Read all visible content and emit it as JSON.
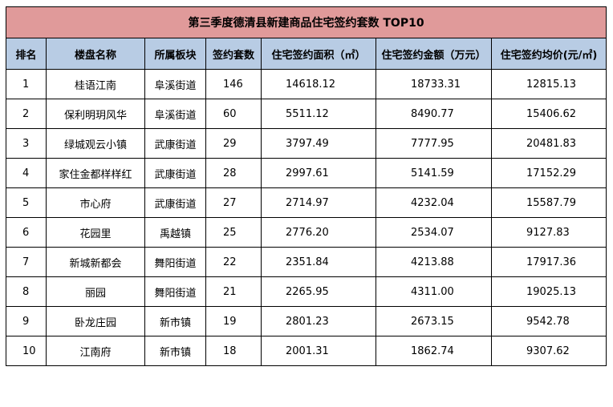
{
  "title": "第三季度德清县新建商品住宅签约套数 TOP10",
  "colors": {
    "title_bg": "#e09a9a",
    "header_bg": "#b8cce4",
    "border": "#000000"
  },
  "columns": [
    "排名",
    "楼盘名称",
    "所属板块",
    "签约套数",
    "住宅签约面积（㎡）",
    "住宅签约金额（万元）",
    "住宅签约均价(元/㎡)"
  ],
  "rows": [
    {
      "rank": "1",
      "name": "桂语江南",
      "area": "阜溪街道",
      "units": "146",
      "sqm": "14618.12",
      "amount": "18733.31",
      "price": "12815.13"
    },
    {
      "rank": "2",
      "name": "保利明玥风华",
      "area": "阜溪街道",
      "units": "60",
      "sqm": "5511.12",
      "amount": "8490.77",
      "price": "15406.62"
    },
    {
      "rank": "3",
      "name": "绿城观云小镇",
      "area": "武康街道",
      "units": "29",
      "sqm": "3797.49",
      "amount": "7777.95",
      "price": "20481.83"
    },
    {
      "rank": "4",
      "name": "家住金都样样红",
      "area": "武康街道",
      "units": "28",
      "sqm": "2997.61",
      "amount": "5141.59",
      "price": "17152.29"
    },
    {
      "rank": "5",
      "name": "市心府",
      "area": "武康街道",
      "units": "27",
      "sqm": "2714.97",
      "amount": "4232.04",
      "price": "15587.79"
    },
    {
      "rank": "6",
      "name": "花园里",
      "area": "禹越镇",
      "units": "25",
      "sqm": "2776.20",
      "amount": "2534.07",
      "price": "9127.83"
    },
    {
      "rank": "7",
      "name": "新城新都会",
      "area": "舞阳街道",
      "units": "22",
      "sqm": "2351.84",
      "amount": "4213.88",
      "price": "17917.36"
    },
    {
      "rank": "8",
      "name": "丽园",
      "area": "舞阳街道",
      "units": "21",
      "sqm": "2265.95",
      "amount": "4311.00",
      "price": "19025.13"
    },
    {
      "rank": "9",
      "name": "卧龙庄园",
      "area": "新市镇",
      "units": "19",
      "sqm": "2801.23",
      "amount": "2673.15",
      "price": "9542.78"
    },
    {
      "rank": "10",
      "name": "江南府",
      "area": "新市镇",
      "units": "18",
      "sqm": "2001.31",
      "amount": "1862.74",
      "price": "9307.62"
    }
  ]
}
